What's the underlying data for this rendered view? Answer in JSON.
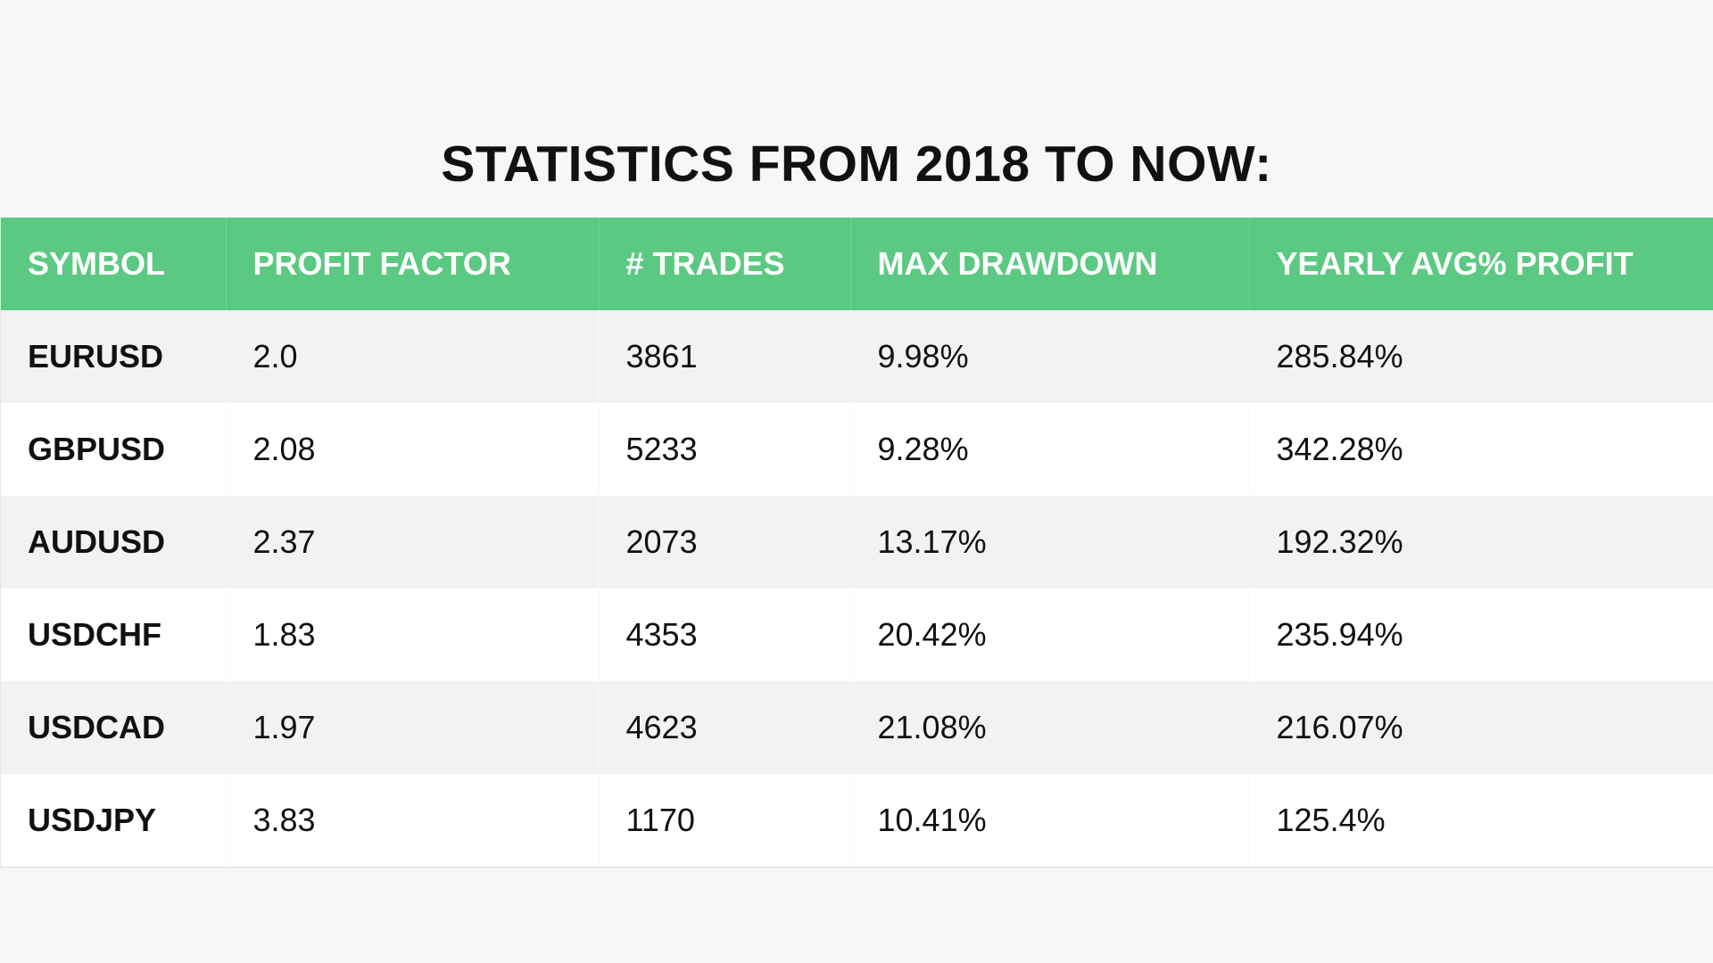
{
  "title": "STATISTICS FROM 2018 TO NOW:",
  "colors": {
    "header_bg": "#5cc983",
    "header_text": "#ffffff",
    "row_alt": "#f2f2f2",
    "row": "#ffffff"
  },
  "table": {
    "headers": [
      "SYMBOL",
      "PROFIT FACTOR",
      "# TRADES",
      "MAX DRAWDOWN",
      "YEARLY AVG% PROFIT"
    ],
    "rows": [
      [
        "EURUSD",
        "2.0",
        "3861",
        "9.98%",
        "285.84%"
      ],
      [
        "GBPUSD",
        "2.08",
        "5233",
        "9.28%",
        "342.28%"
      ],
      [
        "AUDUSD",
        "2.37",
        "2073",
        "13.17%",
        "192.32%"
      ],
      [
        "USDCHF",
        "1.83",
        "4353",
        "20.42%",
        "235.94%"
      ],
      [
        "USDCAD",
        "1.97",
        "4623",
        "21.08%",
        "216.07%"
      ],
      [
        "USDJPY",
        "3.83",
        "1170",
        "10.41%",
        "125.4%"
      ]
    ]
  }
}
